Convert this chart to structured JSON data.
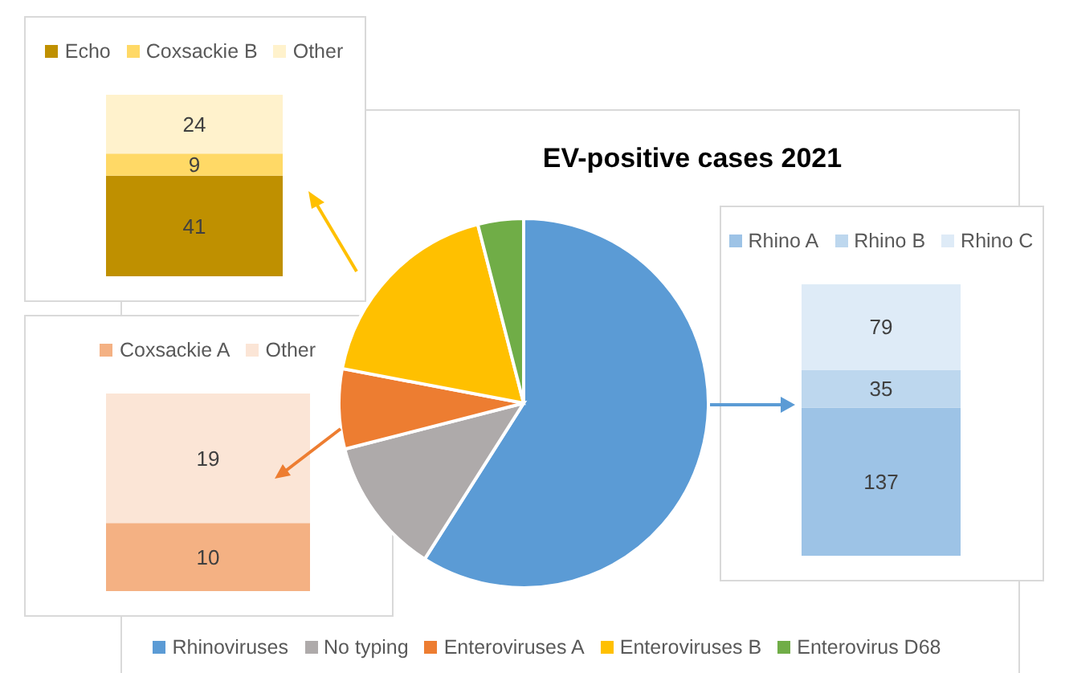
{
  "chart_data": [
    {
      "type": "pie",
      "title": "EV-positive cases 2021",
      "categories": [
        "Rhinoviruses",
        "No typing",
        "Enteroviruses A",
        "Enteroviruses B",
        "Enterovirus D68"
      ],
      "values": [
        59,
        12,
        7,
        18,
        4
      ],
      "colors": [
        "#5b9bd5",
        "#aeaaaa",
        "#ed7d31",
        "#ffc000",
        "#70ad47"
      ],
      "legend": "bottom"
    },
    {
      "type": "bar",
      "stacked": true,
      "categories": [
        null
      ],
      "series": [
        {
          "name": "Echo",
          "color": "#bf9000",
          "values": [
            41
          ]
        },
        {
          "name": "Coxsackie B",
          "color": "#ffd966",
          "values": [
            9
          ]
        },
        {
          "name": "Other",
          "color": "#fff2cc",
          "values": [
            24
          ]
        }
      ],
      "data_labels": true,
      "legend": "top"
    },
    {
      "type": "bar",
      "stacked": true,
      "categories": [
        null
      ],
      "series": [
        {
          "name": "Coxsackie A",
          "color": "#f4b183",
          "values": [
            10
          ]
        },
        {
          "name": "Other",
          "color": "#fbe5d6",
          "values": [
            19
          ]
        }
      ],
      "data_labels": true,
      "legend": "top"
    },
    {
      "type": "bar",
      "stacked": true,
      "categories": [
        null
      ],
      "series": [
        {
          "name": "Rhino A",
          "color": "#9dc3e6",
          "values": [
            137
          ]
        },
        {
          "name": "Rhino B",
          "color": "#bdd7ee",
          "values": [
            35
          ]
        },
        {
          "name": "Rhino C",
          "color": "#deebf7",
          "values": [
            79
          ]
        }
      ],
      "data_labels": true,
      "legend": "top"
    }
  ]
}
